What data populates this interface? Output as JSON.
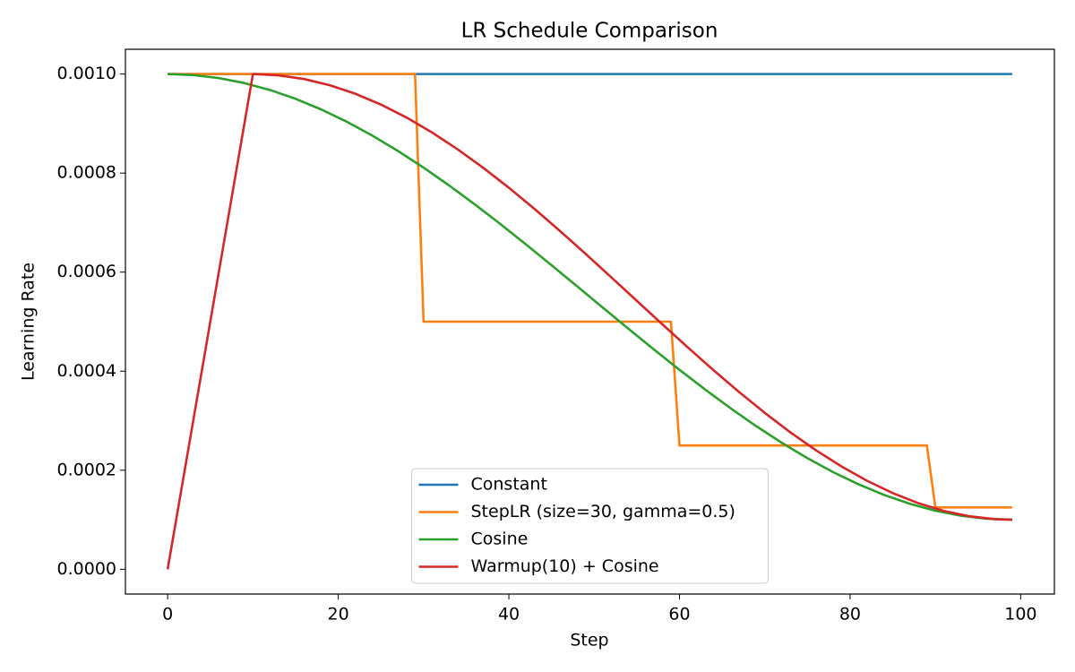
{
  "chart_data": {
    "type": "line",
    "title": "LR Schedule Comparison",
    "x_label": "Step",
    "y_label": "Learning Rate",
    "xlim": [
      -4.95,
      103.95
    ],
    "ylim": [
      -5e-05,
      0.00105
    ],
    "xticks": [
      0,
      20,
      40,
      60,
      80,
      100
    ],
    "yticks": [
      {
        "value": 0,
        "label": "0.0000"
      },
      {
        "value": 0.0002,
        "label": "0.0002"
      },
      {
        "value": 0.0004,
        "label": "0.0004"
      },
      {
        "value": 0.0006,
        "label": "0.0006"
      },
      {
        "value": 0.0008,
        "label": "0.0008"
      },
      {
        "value": 0.001,
        "label": "0.0010"
      }
    ],
    "grid": false,
    "legend_position": "lower center",
    "series": [
      {
        "name": "Constant",
        "color": "#1f77b4",
        "x": [
          0,
          99
        ],
        "values": [
          0.001,
          0.001
        ]
      },
      {
        "name": "StepLR (size=30, gamma=0.5)",
        "color": "#ff7f0e",
        "x": [
          0,
          29,
          30,
          59,
          60,
          89,
          90,
          99
        ],
        "values": [
          0.001,
          0.001,
          0.0005,
          0.0005,
          0.00025,
          0.00025,
          0.000125,
          0.000125
        ]
      },
      {
        "name": "Cosine",
        "color": "#2ca02c",
        "x": [
          0,
          3,
          6,
          9,
          12,
          15,
          18,
          21,
          24,
          27,
          30,
          33,
          36,
          39,
          42,
          45,
          48,
          51,
          54,
          57,
          60,
          63,
          66,
          69,
          72,
          75,
          78,
          81,
          84,
          87,
          90,
          93,
          96,
          99
        ],
        "values": [
          0.001,
          0.00099796,
          0.00099187,
          0.00098177,
          0.00096776,
          0.00094998,
          0.00092856,
          0.00090372,
          0.00087568,
          0.00084469,
          0.00081102,
          0.000775,
          0.00073694,
          0.00069718,
          0.00065609,
          0.00061404,
          0.00057141,
          0.00052859,
          0.00048596,
          0.00044391,
          0.00040282,
          0.00036306,
          0.000325,
          0.00028898,
          0.00025531,
          0.00022432,
          0.00019628,
          0.00017144,
          0.00015002,
          0.00013224,
          0.00011823,
          0.00010813,
          0.00010204,
          0.0001
        ]
      },
      {
        "name": "Warmup(10) + Cosine",
        "color": "#d62728",
        "x": [
          0,
          10,
          13,
          16,
          19,
          22,
          25,
          28,
          31,
          34,
          37,
          40,
          43,
          46,
          49,
          52,
          55,
          58,
          61,
          64,
          67,
          70,
          73,
          76,
          79,
          82,
          85,
          88,
          91,
          94,
          97,
          99
        ],
        "values": [
          0,
          0.001,
          0.00099748,
          0.00098995,
          0.00097748,
          0.00096023,
          0.00093838,
          0.00091219,
          0.00088193,
          0.00084796,
          0.00081064,
          0.0007704,
          0.00072768,
          0.00068299,
          0.00063681,
          0.00058965,
          0.00054206,
          0.00049454,
          0.00044767,
          0.00040191,
          0.00035782,
          0.00031584,
          0.0002765,
          0.00024028,
          0.00020759,
          0.00017863,
          0.00015389,
          0.00013351,
          0.00011782,
          0.00010699,
          0.00010112,
          0.0001
        ]
      }
    ]
  }
}
